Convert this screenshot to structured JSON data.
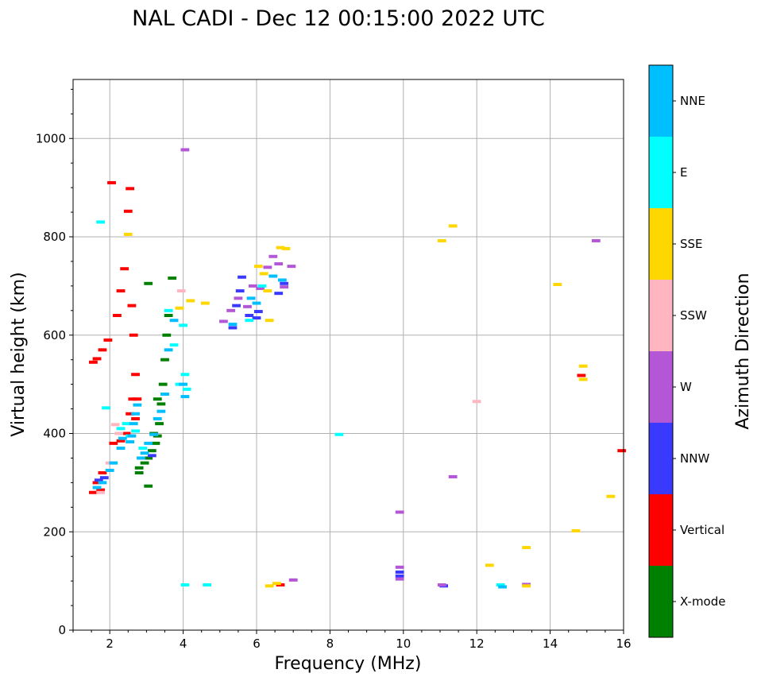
{
  "chart_data": {
    "type": "scatter",
    "title": "NAL CADI - Dec 12 00:15:00 2022 UTC",
    "xlabel": "Frequency (MHz)",
    "ylabel": "Virtual height (km)",
    "xlim": [
      1,
      16
    ],
    "ylim": [
      0,
      1120
    ],
    "xticks": [
      2,
      4,
      6,
      8,
      10,
      12,
      14,
      16
    ],
    "yticks": [
      0,
      200,
      400,
      600,
      800,
      1000
    ],
    "grid": true,
    "colorbar": {
      "title": "Azimuth Direction",
      "categories": [
        {
          "name": "X-mode",
          "color": "#008000"
        },
        {
          "name": "Vertical",
          "color": "#ff0000"
        },
        {
          "name": "NNW",
          "color": "#3a3aff"
        },
        {
          "name": "W",
          "color": "#b457d6"
        },
        {
          "name": "SSW",
          "color": "#ffb6c1"
        },
        {
          "name": "SSE",
          "color": "#ffd700"
        },
        {
          "name": "E",
          "color": "#00ffff"
        },
        {
          "name": "NNE",
          "color": "#00bfff"
        }
      ]
    },
    "series": [
      {
        "name": "Vertical",
        "points": [
          [
            1.55,
            545
          ],
          [
            1.65,
            552
          ],
          [
            1.8,
            570
          ],
          [
            1.95,
            590
          ],
          [
            2.05,
            910
          ],
          [
            2.2,
            640
          ],
          [
            2.3,
            690
          ],
          [
            2.4,
            735
          ],
          [
            2.55,
            898
          ],
          [
            2.5,
            852
          ],
          [
            2.6,
            660
          ],
          [
            2.65,
            600
          ],
          [
            2.7,
            520
          ],
          [
            2.62,
            470
          ],
          [
            2.55,
            440
          ],
          [
            2.45,
            400
          ],
          [
            2.3,
            385
          ],
          [
            2.1,
            380
          ],
          [
            1.8,
            320
          ],
          [
            1.65,
            300
          ],
          [
            1.55,
            280
          ],
          [
            1.75,
            285
          ],
          [
            2.75,
            470
          ],
          [
            2.7,
            430
          ],
          [
            6.65,
            92
          ],
          [
            14.85,
            518
          ],
          [
            15.95,
            365
          ]
        ]
      },
      {
        "name": "X-mode",
        "points": [
          [
            2.8,
            330
          ],
          [
            2.95,
            340
          ],
          [
            3.05,
            350
          ],
          [
            3.15,
            365
          ],
          [
            3.25,
            380
          ],
          [
            3.3,
            395
          ],
          [
            3.35,
            420
          ],
          [
            3.4,
            460
          ],
          [
            3.45,
            500
          ],
          [
            3.5,
            550
          ],
          [
            3.55,
            600
          ],
          [
            3.6,
            640
          ],
          [
            3.7,
            716
          ],
          [
            3.05,
            705
          ],
          [
            2.8,
            320
          ],
          [
            3.05,
            293
          ],
          [
            3.3,
            470
          ],
          [
            3.2,
            400
          ]
        ]
      },
      {
        "name": "NNW",
        "points": [
          [
            1.7,
            305
          ],
          [
            1.85,
            310
          ],
          [
            5.35,
            615
          ],
          [
            5.45,
            660
          ],
          [
            5.55,
            690
          ],
          [
            5.6,
            718
          ],
          [
            5.8,
            640
          ],
          [
            6.0,
            635
          ],
          [
            6.05,
            648
          ],
          [
            6.6,
            685
          ],
          [
            6.75,
            705
          ],
          [
            9.9,
            118
          ],
          [
            9.9,
            110
          ],
          [
            11.1,
            90
          ],
          [
            3.15,
            355
          ]
        ]
      },
      {
        "name": "W",
        "points": [
          [
            4.05,
            977
          ],
          [
            5.1,
            628
          ],
          [
            5.3,
            650
          ],
          [
            5.5,
            675
          ],
          [
            5.75,
            658
          ],
          [
            5.9,
            700
          ],
          [
            6.1,
            695
          ],
          [
            6.3,
            738
          ],
          [
            6.45,
            760
          ],
          [
            6.6,
            745
          ],
          [
            6.75,
            698
          ],
          [
            6.95,
            740
          ],
          [
            7.0,
            102
          ],
          [
            9.9,
            240
          ],
          [
            9.9,
            128
          ],
          [
            9.9,
            104
          ],
          [
            11.05,
            92
          ],
          [
            11.35,
            312
          ],
          [
            13.35,
            93
          ],
          [
            15.25,
            792
          ]
        ]
      },
      {
        "name": "SSW",
        "points": [
          [
            1.75,
            280
          ],
          [
            2.15,
            418
          ],
          [
            2.25,
            400
          ],
          [
            2.0,
            340
          ],
          [
            3.95,
            690
          ],
          [
            12.0,
            465
          ]
        ]
      },
      {
        "name": "SSE",
        "points": [
          [
            2.5,
            805
          ],
          [
            3.9,
            655
          ],
          [
            4.2,
            670
          ],
          [
            4.6,
            665
          ],
          [
            6.05,
            740
          ],
          [
            6.2,
            725
          ],
          [
            6.3,
            690
          ],
          [
            6.35,
            630
          ],
          [
            6.55,
            95
          ],
          [
            6.35,
            90
          ],
          [
            6.65,
            778
          ],
          [
            6.8,
            776
          ],
          [
            11.05,
            792
          ],
          [
            11.35,
            822
          ],
          [
            12.35,
            132
          ],
          [
            13.35,
            168
          ],
          [
            13.35,
            90
          ],
          [
            14.2,
            703
          ],
          [
            14.7,
            202
          ],
          [
            14.9,
            537
          ],
          [
            14.9,
            510
          ],
          [
            15.65,
            272
          ]
        ]
      },
      {
        "name": "E",
        "points": [
          [
            1.75,
            830
          ],
          [
            1.9,
            452
          ],
          [
            2.3,
            410
          ],
          [
            2.45,
            420
          ],
          [
            2.55,
            395
          ],
          [
            2.7,
            405
          ],
          [
            2.9,
            370
          ],
          [
            3.6,
            650
          ],
          [
            3.75,
            580
          ],
          [
            4.0,
            620
          ],
          [
            4.05,
            520
          ],
          [
            4.1,
            490
          ],
          [
            3.9,
            500
          ],
          [
            4.05,
            92
          ],
          [
            4.65,
            92
          ],
          [
            8.25,
            398
          ],
          [
            12.65,
            92
          ],
          [
            5.8,
            630
          ],
          [
            6.15,
            700
          ]
        ]
      },
      {
        "name": "NNE",
        "points": [
          [
            1.65,
            290
          ],
          [
            1.8,
            300
          ],
          [
            2.0,
            325
          ],
          [
            2.1,
            340
          ],
          [
            2.3,
            370
          ],
          [
            2.35,
            390
          ],
          [
            2.55,
            383
          ],
          [
            2.6,
            395
          ],
          [
            2.65,
            420
          ],
          [
            2.7,
            440
          ],
          [
            2.75,
            458
          ],
          [
            2.85,
            350
          ],
          [
            2.95,
            360
          ],
          [
            3.05,
            380
          ],
          [
            3.2,
            398
          ],
          [
            3.3,
            430
          ],
          [
            3.4,
            445
          ],
          [
            3.5,
            480
          ],
          [
            3.6,
            570
          ],
          [
            3.75,
            630
          ],
          [
            4.0,
            500
          ],
          [
            4.05,
            475
          ],
          [
            5.35,
            622
          ],
          [
            5.85,
            675
          ],
          [
            6.0,
            665
          ],
          [
            6.45,
            720
          ],
          [
            6.7,
            712
          ],
          [
            12.7,
            88
          ]
        ]
      }
    ]
  }
}
